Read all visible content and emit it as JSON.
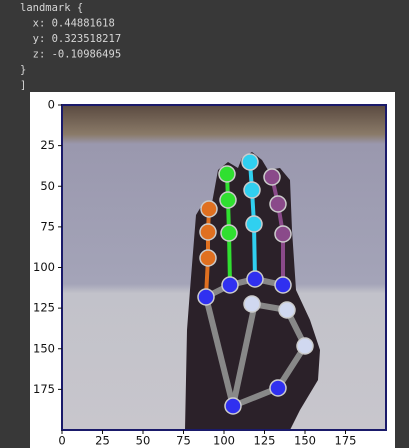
{
  "output": {
    "lines": [
      "landmark {",
      "  x: 0.44881618",
      "  y: 0.323518217",
      "  z: -0.10986495",
      "}",
      "]"
    ]
  },
  "plot": {
    "xlim": [
      0,
      200
    ],
    "ylim": [
      200,
      0
    ],
    "xticks": [
      0,
      25,
      50,
      75,
      100,
      125,
      150,
      175
    ],
    "yticks": [
      0,
      25,
      50,
      75,
      100,
      125,
      150,
      175
    ]
  }
}
